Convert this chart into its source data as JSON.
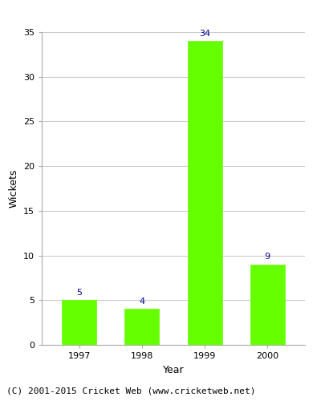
{
  "categories": [
    "1997",
    "1998",
    "1999",
    "2000"
  ],
  "values": [
    5,
    4,
    34,
    9
  ],
  "bar_color": "#66ff00",
  "bar_edge_color": "#66ff00",
  "label_color": "#00008B",
  "ylabel": "Wickets",
  "xlabel": "Year",
  "ylim": [
    0,
    35
  ],
  "yticks": [
    0,
    5,
    10,
    15,
    20,
    25,
    30,
    35
  ],
  "grid_color": "#cccccc",
  "bg_color": "#ffffff",
  "footer": "(C) 2001-2015 Cricket Web (www.cricketweb.net)",
  "label_fontsize": 8,
  "axis_label_fontsize": 9,
  "tick_fontsize": 8,
  "footer_fontsize": 8
}
